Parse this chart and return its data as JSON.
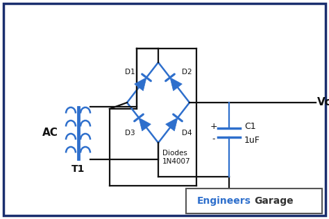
{
  "bg_color": "#ffffff",
  "border_color": "#1a2e6e",
  "wire_color": "#111111",
  "diode_color": "#2e6fcc",
  "transformer_color": "#2e6fcc",
  "cap_color": "#2e6fcc",
  "label_color": "#111111",
  "vcc_label": "Vcc",
  "ac_label": "AC",
  "t1_label": "T1",
  "d1_label": "D1",
  "d2_label": "D2",
  "d3_label": "D3",
  "d4_label": "D4",
  "diodes_line1": "Diodes",
  "diodes_line2": "1N4007",
  "c1_label": "C1",
  "uf_label": "1uF",
  "plus_label": "+",
  "minus_label": "-",
  "engineers_color": "#2e6fcc",
  "garage_color": "#333333",
  "engineers_label": "Engineers",
  "garage_label": "Garage",
  "figw": 4.74,
  "figh": 3.16,
  "dpi": 100
}
